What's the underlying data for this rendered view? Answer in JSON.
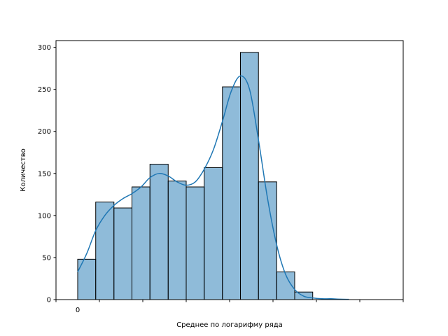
{
  "chart_data": {
    "type": "bar",
    "title": "",
    "xlabel": "Среднее по логарифму ряда",
    "ylabel": "Количество",
    "xlim": [
      -1,
      15
    ],
    "ylim": [
      0,
      308
    ],
    "x_ticks": [
      0
    ],
    "x_tick_labels": [
      "0"
    ],
    "y_ticks": [
      0,
      50,
      100,
      150,
      200,
      250,
      300
    ],
    "y_tick_labels": [
      "0",
      "50",
      "100",
      "150",
      "200",
      "250",
      "300"
    ],
    "grid": false,
    "bar_color": "#1f77b4",
    "kde_color": "#1f77b4",
    "bins": [
      {
        "x0": 0.0,
        "x1": 0.83,
        "count": 48
      },
      {
        "x0": 0.83,
        "x1": 1.67,
        "count": 116
      },
      {
        "x0": 1.67,
        "x1": 2.5,
        "count": 109
      },
      {
        "x0": 2.5,
        "x1": 3.33,
        "count": 134
      },
      {
        "x0": 3.33,
        "x1": 4.17,
        "count": 161
      },
      {
        "x0": 4.17,
        "x1": 5.0,
        "count": 141
      },
      {
        "x0": 5.0,
        "x1": 5.83,
        "count": 134
      },
      {
        "x0": 5.83,
        "x1": 6.67,
        "count": 157
      },
      {
        "x0": 6.67,
        "x1": 7.5,
        "count": 253
      },
      {
        "x0": 7.5,
        "x1": 8.33,
        "count": 294
      },
      {
        "x0": 8.33,
        "x1": 9.17,
        "count": 140
      },
      {
        "x0": 9.17,
        "x1": 10.0,
        "count": 33
      },
      {
        "x0": 10.0,
        "x1": 10.83,
        "count": 9
      }
    ],
    "kde": {
      "x": [
        0.0,
        0.42,
        0.83,
        1.25,
        1.67,
        2.08,
        2.5,
        2.92,
        3.33,
        3.75,
        4.17,
        4.58,
        5.0,
        5.42,
        5.83,
        6.25,
        6.67,
        7.08,
        7.5,
        7.92,
        8.33,
        8.75,
        9.17,
        9.58,
        10.0,
        10.42,
        10.83,
        11.25,
        11.67,
        12.08,
        12.5
      ],
      "y": [
        33,
        55,
        82,
        100,
        112,
        120,
        126,
        134,
        145,
        150,
        147,
        140,
        136,
        140,
        155,
        178,
        212,
        248,
        266,
        250,
        190,
        120,
        65,
        30,
        12,
        4,
        2,
        1,
        1,
        0.5,
        0.3
      ]
    }
  }
}
